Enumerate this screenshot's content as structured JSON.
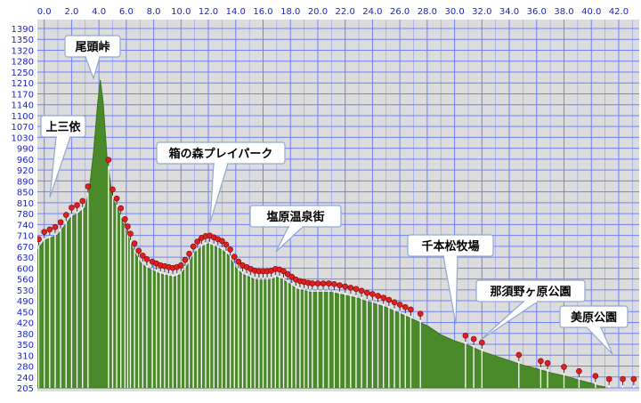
{
  "chart_data": {
    "type": "area",
    "x_ticks": [
      "0.0",
      "2.0",
      "4.0",
      "6.0",
      "8.0",
      "10.0",
      "12.0",
      "14.0",
      "16.0",
      "18.0",
      "20.0",
      "22.0",
      "24.0",
      "26.0",
      "28.0",
      "30.0",
      "32.0",
      "34.0",
      "36.0",
      "38.0",
      "40.0",
      "42.0"
    ],
    "y_ticks": [
      "1390",
      "1350",
      "1320",
      "1280",
      "1250",
      "1210",
      "1170",
      "1140",
      "1100",
      "1070",
      "1030",
      "990",
      "960",
      "920",
      "890",
      "850",
      "810",
      "780",
      "740",
      "710",
      "670",
      "630",
      "600",
      "560",
      "530",
      "490",
      "450",
      "420",
      "380",
      "350",
      "310",
      "280",
      "240",
      "205"
    ],
    "xlim": [
      -0.5,
      43.5
    ],
    "ylim": [
      205,
      1390
    ],
    "series": [
      {
        "points": [
          [
            -0.5,
            660
          ],
          [
            0,
            690
          ],
          [
            0.5,
            700
          ],
          [
            1,
            710
          ],
          [
            1.5,
            740
          ],
          [
            2,
            770
          ],
          [
            2.5,
            780
          ],
          [
            3,
            800
          ],
          [
            3.3,
            860
          ],
          [
            3.6,
            980
          ],
          [
            3.9,
            1140
          ],
          [
            4.1,
            1220
          ],
          [
            4.3,
            1150
          ],
          [
            4.6,
            960
          ],
          [
            5,
            830
          ],
          [
            5.5,
            780
          ],
          [
            6,
            720
          ],
          [
            6.5,
            660
          ],
          [
            7,
            620
          ],
          [
            7.5,
            600
          ],
          [
            8,
            590
          ],
          [
            8.5,
            580
          ],
          [
            9,
            575
          ],
          [
            9.5,
            570
          ],
          [
            10,
            580
          ],
          [
            10.5,
            610
          ],
          [
            11,
            650
          ],
          [
            11.5,
            670
          ],
          [
            12,
            680
          ],
          [
            12.5,
            670
          ],
          [
            13,
            660
          ],
          [
            13.5,
            640
          ],
          [
            14,
            600
          ],
          [
            14.5,
            580
          ],
          [
            15,
            570
          ],
          [
            15.5,
            560
          ],
          [
            16,
            560
          ],
          [
            16.5,
            560
          ],
          [
            17,
            570
          ],
          [
            17.5,
            560
          ],
          [
            18,
            545
          ],
          [
            18.5,
            530
          ],
          [
            19,
            525
          ],
          [
            19.5,
            520
          ],
          [
            20,
            520
          ],
          [
            20.5,
            520
          ],
          [
            21,
            520
          ],
          [
            21.5,
            515
          ],
          [
            22,
            510
          ],
          [
            22.5,
            505
          ],
          [
            23,
            500
          ],
          [
            23.5,
            490
          ],
          [
            24,
            485
          ],
          [
            25,
            470
          ],
          [
            26,
            450
          ],
          [
            27,
            430
          ],
          [
            28,
            410
          ],
          [
            29,
            380
          ],
          [
            30,
            360
          ],
          [
            31,
            345
          ],
          [
            32,
            325
          ],
          [
            33,
            310
          ],
          [
            34,
            295
          ],
          [
            35,
            280
          ],
          [
            36,
            268
          ],
          [
            37,
            255
          ],
          [
            38,
            245
          ],
          [
            39,
            232
          ],
          [
            40,
            220
          ],
          [
            40.5,
            212
          ],
          [
            41,
            208
          ]
        ]
      }
    ],
    "markers_x": [
      -0.4,
      0,
      0.4,
      0.8,
      1.2,
      1.6,
      2,
      2.4,
      2.8,
      3.2,
      4.7,
      5,
      5.3,
      5.6,
      5.9,
      6.1,
      6.3,
      6.6,
      6.9,
      7.2,
      7.5,
      7.9,
      8.2,
      8.5,
      8.8,
      9.1,
      9.4,
      9.7,
      10,
      10.3,
      10.6,
      10.9,
      11.2,
      11.5,
      11.8,
      12.1,
      12.4,
      12.7,
      13,
      13.3,
      13.6,
      13.9,
      14.2,
      14.5,
      14.8,
      15.1,
      15.4,
      15.7,
      16,
      16.3,
      16.6,
      16.9,
      17.2,
      17.5,
      17.8,
      18.1,
      18.4,
      18.7,
      19,
      19.3,
      19.6,
      20,
      20.4,
      20.8,
      21.2,
      21.6,
      22,
      22.4,
      22.8,
      23.2,
      23.6,
      24,
      24.4,
      24.8,
      25.2,
      25.6,
      26,
      26.4,
      26.8,
      27.5,
      30.8,
      31.4,
      32,
      34.7,
      36.3,
      36.8,
      38,
      39.1,
      40.3,
      41.3,
      42.3,
      43.1
    ],
    "annotations": [
      {
        "label": "尾頭峠",
        "x": 4.1
      },
      {
        "label": "上三依",
        "x": 0.2
      },
      {
        "label": "箱の森プレイパーク",
        "x": 12.5
      },
      {
        "label": "塩原温泉街",
        "x": 17.5
      },
      {
        "label": "千本松牧場",
        "x": 31.0
      },
      {
        "label": "那須野ヶ原公園",
        "x": 31.8
      },
      {
        "label": "美原公園",
        "x": 42.5
      }
    ],
    "grid": true,
    "colors": {
      "fill": "#4a8a2a",
      "fill_light": "#7bb65a",
      "grid_line": "#7080ff",
      "tick_text": "#1a23c8",
      "plot_bg": "#dcdcdc",
      "marker_head": "#e02020",
      "marker_stem": "#ffffff",
      "callout_bg": "#ffffff",
      "callout_border": "#90a8d0"
    }
  }
}
